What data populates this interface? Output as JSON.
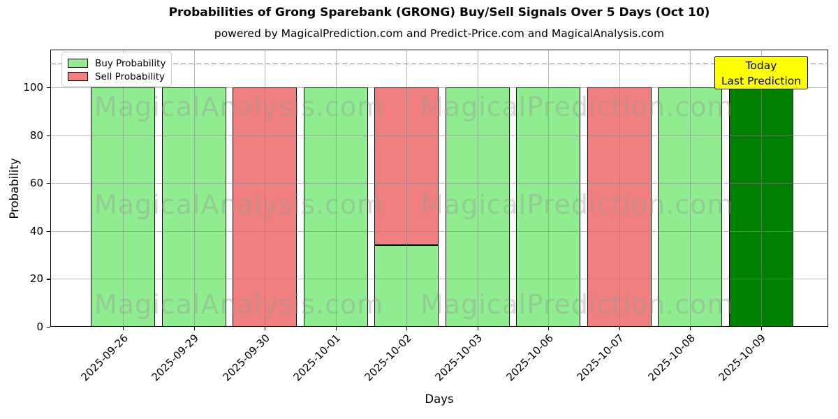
{
  "title": "Probabilities of Grong Sparebank (GRONG) Buy/Sell Signals Over 5 Days (Oct 10)",
  "subtitle": "powered by MagicalPrediction.com and Predict-Price.com and MagicalAnalysis.com",
  "axes": {
    "xlabel": "Days",
    "ylabel": "Probability",
    "yticks": [
      0,
      20,
      40,
      60,
      80,
      100
    ]
  },
  "legend": {
    "items": [
      {
        "label": "Buy Probability",
        "color": "#90EE90"
      },
      {
        "label": "Sell Probability",
        "color": "#F08080"
      }
    ]
  },
  "annotation": {
    "line1": "Today",
    "line2": "Last Prediction",
    "bg_color": "#FFFF00"
  },
  "watermarks": {
    "left_text": "MagicalAnalysis.com",
    "right_text": "MagicalPrediction.com"
  },
  "chart_data": {
    "type": "bar",
    "stacked": true,
    "title": "Probabilities of Grong Sparebank (GRONG) Buy/Sell Signals Over 5 Days (Oct 10)",
    "xlabel": "Days",
    "ylabel": "Probability",
    "categories": [
      "2025-09-26",
      "2025-09-29",
      "2025-09-30",
      "2025-10-01",
      "2025-10-02",
      "2025-10-03",
      "2025-10-06",
      "2025-10-07",
      "2025-10-08",
      "2025-10-09"
    ],
    "series": [
      {
        "name": "Buy Probability",
        "color": "#90EE90",
        "values": [
          100,
          100,
          0,
          100,
          34,
          100,
          100,
          0,
          100,
          0
        ]
      },
      {
        "name": "Sell Probability",
        "color": "#F08080",
        "values": [
          0,
          0,
          100,
          0,
          66,
          0,
          0,
          100,
          0,
          0
        ]
      },
      {
        "name": "Today Last Prediction",
        "color": "#008000",
        "values": [
          0,
          0,
          0,
          0,
          0,
          0,
          0,
          0,
          0,
          100
        ]
      }
    ],
    "ylim": [
      0,
      115.7
    ],
    "yticks": [
      0,
      20,
      40,
      60,
      80,
      100
    ],
    "dashed_line_y": 110,
    "grid": true,
    "legend_position": "upper left",
    "bar_edge_color": "#000000"
  }
}
